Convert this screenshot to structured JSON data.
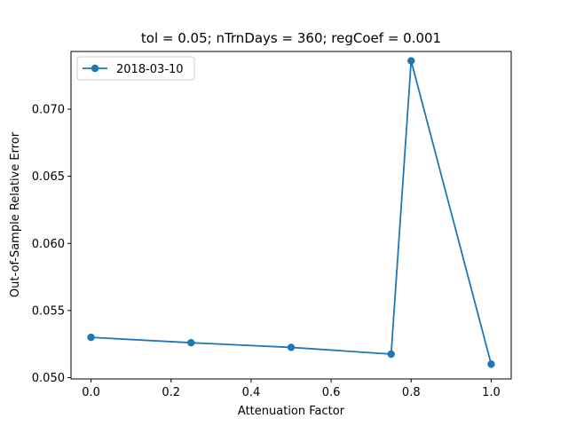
{
  "chart_data": {
    "type": "line",
    "title": "tol = 0.05; nTrnDays = 360; regCoef = 0.001",
    "xlabel": "Attenuation Factor",
    "ylabel": "Out-of-Sample Relative Error",
    "xlim": [
      -0.05,
      1.05
    ],
    "ylim": [
      0.0499,
      0.0743
    ],
    "xticks": [
      0.0,
      0.2,
      0.4,
      0.6,
      0.8,
      1.0
    ],
    "xtick_labels": [
      "0.0",
      "0.2",
      "0.4",
      "0.6",
      "0.8",
      "1.0"
    ],
    "yticks": [
      0.05,
      0.055,
      0.06,
      0.065,
      0.07
    ],
    "ytick_labels": [
      "0.050",
      "0.055",
      "0.060",
      "0.065",
      "0.070"
    ],
    "grid": false,
    "legend_position": "top-left",
    "series": [
      {
        "name": "2018-03-10",
        "color": "#1f77b4",
        "marker": "circle",
        "x": [
          0.0,
          0.25,
          0.5,
          0.75,
          0.8,
          1.0
        ],
        "y": [
          0.053,
          0.0526,
          0.05225,
          0.05175,
          0.0736,
          0.051
        ]
      }
    ]
  }
}
